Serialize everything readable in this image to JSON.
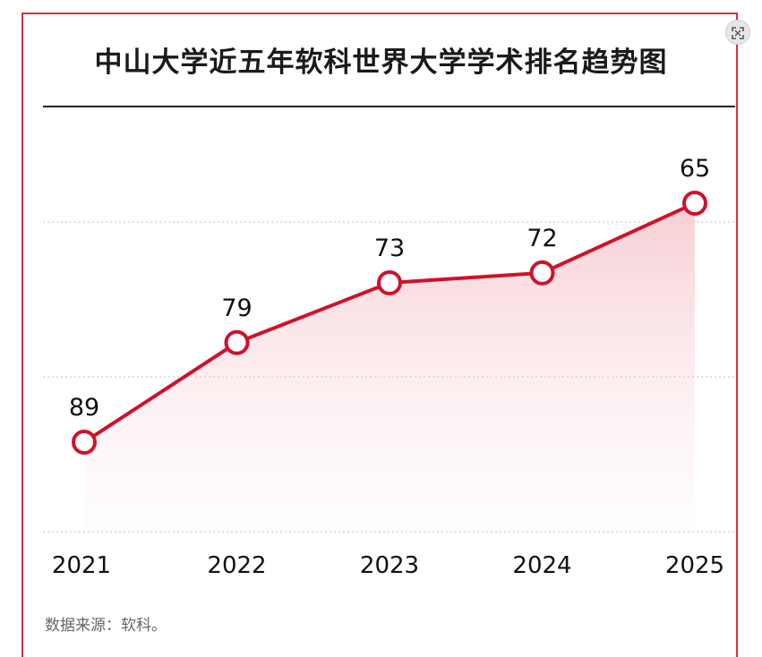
{
  "title": "中山大学近五年软科世界大学学术排名趋势图",
  "source": "数据来源：软科。",
  "icons": {
    "expand": "expand-icon"
  },
  "colors": {
    "line": "#d0112b",
    "frame": "#d9303a",
    "grid": "#cccccc",
    "fill": "#f7cfd4"
  },
  "chart_data": {
    "type": "area",
    "categories": [
      "2021",
      "2022",
      "2023",
      "2024",
      "2025"
    ],
    "series": [
      {
        "values": [
          89,
          79,
          73,
          72,
          65
        ]
      }
    ],
    "labels": [
      "89",
      "79",
      "73",
      "72",
      "65"
    ],
    "grid": true,
    "markers": "hollow-circle"
  }
}
